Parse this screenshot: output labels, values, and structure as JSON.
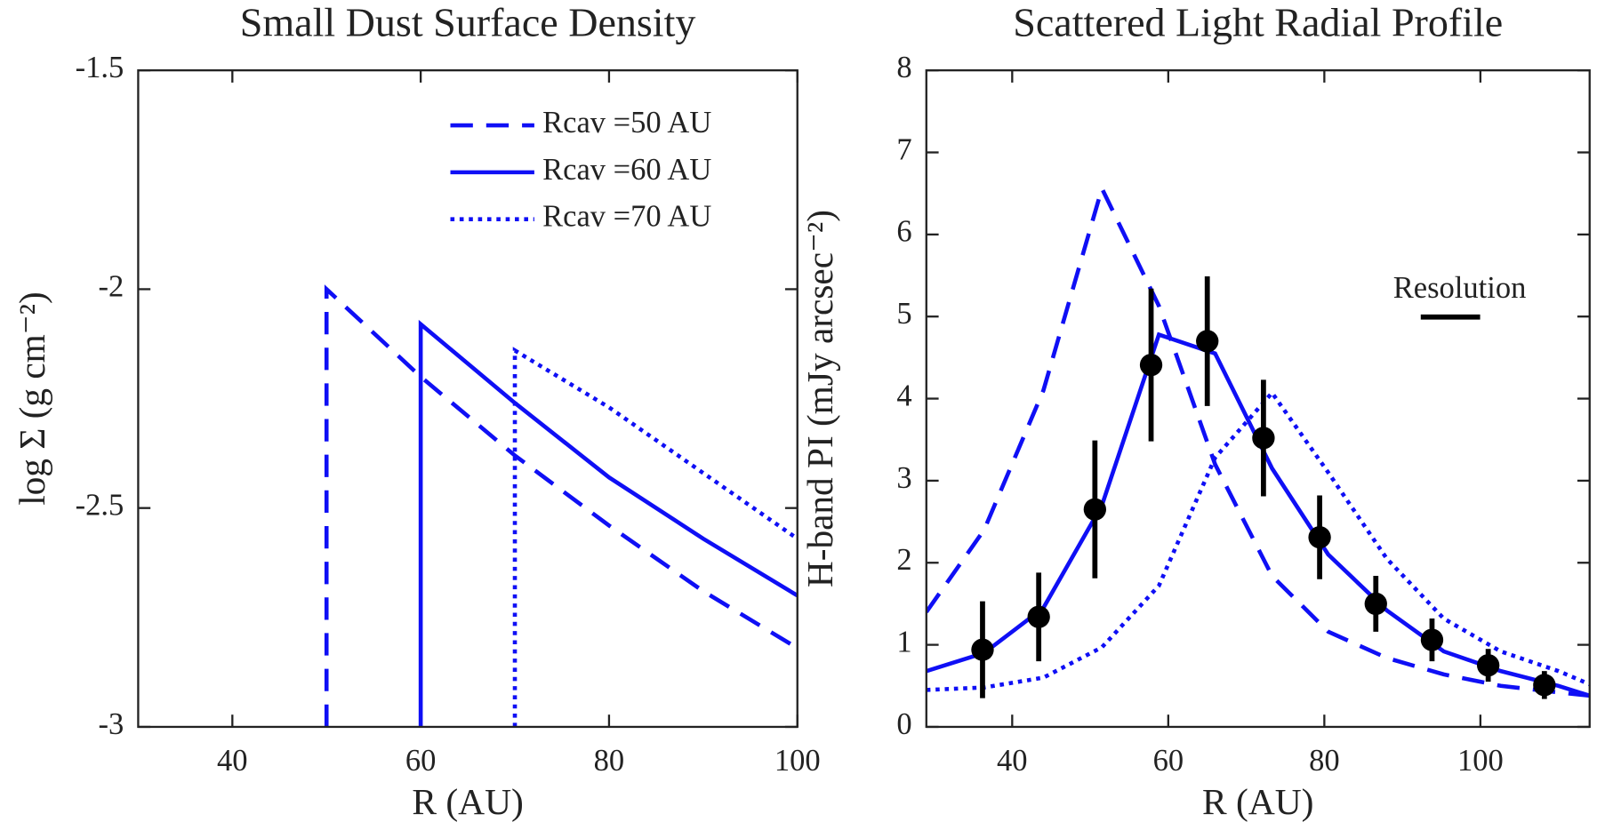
{
  "chart_data": [
    {
      "type": "line",
      "title": "Small Dust Surface Density",
      "xlabel": "R (AU)",
      "ylabel": "log Σ (g cm⁻²)",
      "xlim": [
        30,
        100
      ],
      "xticks": [
        40,
        60,
        80,
        100
      ],
      "ylim": [
        -3,
        -1.5
      ],
      "yticks": [
        -3,
        -2.5,
        -2,
        -1.5
      ],
      "legend": "upper right",
      "series": [
        {
          "name": "Rcav =50 AU",
          "color": "#0f0ff5",
          "linestyle": "dashed",
          "x": [
            50,
            50,
            60,
            70,
            80,
            90,
            100
          ],
          "values": [
            -3,
            -2.0,
            -2.2,
            -2.38,
            -2.54,
            -2.69,
            -2.82
          ]
        },
        {
          "name": "Rcav =60 AU",
          "color": "#0f0ff5",
          "linestyle": "solid",
          "x": [
            60,
            60,
            70,
            80,
            90,
            100
          ],
          "values": [
            -3,
            -2.08,
            -2.26,
            -2.43,
            -2.57,
            -2.7
          ]
        },
        {
          "name": "Rcav =70 AU",
          "color": "#0f0ff5",
          "linestyle": "dotted",
          "x": [
            70,
            70,
            80,
            90,
            100
          ],
          "values": [
            -3,
            -2.14,
            -2.27,
            -2.42,
            -2.57
          ]
        }
      ]
    },
    {
      "type": "line",
      "title": "Scattered Light Radial Profile",
      "xlabel": "R (AU)",
      "ylabel": "H-band PI (mJy arcsec⁻²)",
      "annotation": "Resolution",
      "xlim": [
        29,
        114
      ],
      "xticks": [
        40,
        60,
        80,
        100
      ],
      "ylim": [
        0,
        8
      ],
      "yticks": [
        0,
        1,
        2,
        3,
        4,
        5,
        6,
        7,
        8
      ],
      "series": [
        {
          "color": "#0f0ff5",
          "linestyle": "dashed",
          "x": [
            29,
            36.4,
            44,
            51.5,
            58.8,
            66,
            73.3,
            80.5,
            88,
            95.3,
            102.6,
            110,
            114
          ],
          "values": [
            1.4,
            2.4,
            4.1,
            6.56,
            5.13,
            3.2,
            1.84,
            1.16,
            0.84,
            0.64,
            0.5,
            0.42,
            0.38
          ]
        },
        {
          "color": "#0f0ff5",
          "linestyle": "solid",
          "x": [
            29,
            36.4,
            44,
            51.5,
            58.8,
            66,
            73.3,
            80.5,
            88,
            95.3,
            102.6,
            110,
            114
          ],
          "values": [
            0.68,
            0.9,
            1.45,
            2.7,
            4.78,
            4.55,
            3.15,
            2.1,
            1.42,
            0.92,
            0.68,
            0.5,
            0.38
          ]
        },
        {
          "color": "#0f0ff5",
          "linestyle": "dotted",
          "x": [
            29,
            36.4,
            44,
            51.5,
            58.8,
            66,
            73.3,
            80.5,
            88,
            95.3,
            102.6,
            110,
            114
          ],
          "values": [
            0.45,
            0.48,
            0.6,
            0.97,
            1.72,
            3.28,
            4.07,
            3.1,
            2.05,
            1.32,
            0.92,
            0.68,
            0.52
          ]
        },
        {
          "color": "#000000",
          "linestyle": "none",
          "marker": "circle",
          "x": [
            36.2,
            43.4,
            50.6,
            57.8,
            65,
            72.2,
            79.4,
            86.6,
            93.8,
            101,
            108.2
          ],
          "values": [
            0.94,
            1.34,
            2.65,
            4.41,
            4.7,
            3.52,
            2.31,
            1.5,
            1.06,
            0.75,
            0.51
          ],
          "errors": [
            0.59,
            0.54,
            0.84,
            0.93,
            0.79,
            0.71,
            0.51,
            0.34,
            0.26,
            0.2,
            0.17
          ]
        }
      ]
    }
  ]
}
